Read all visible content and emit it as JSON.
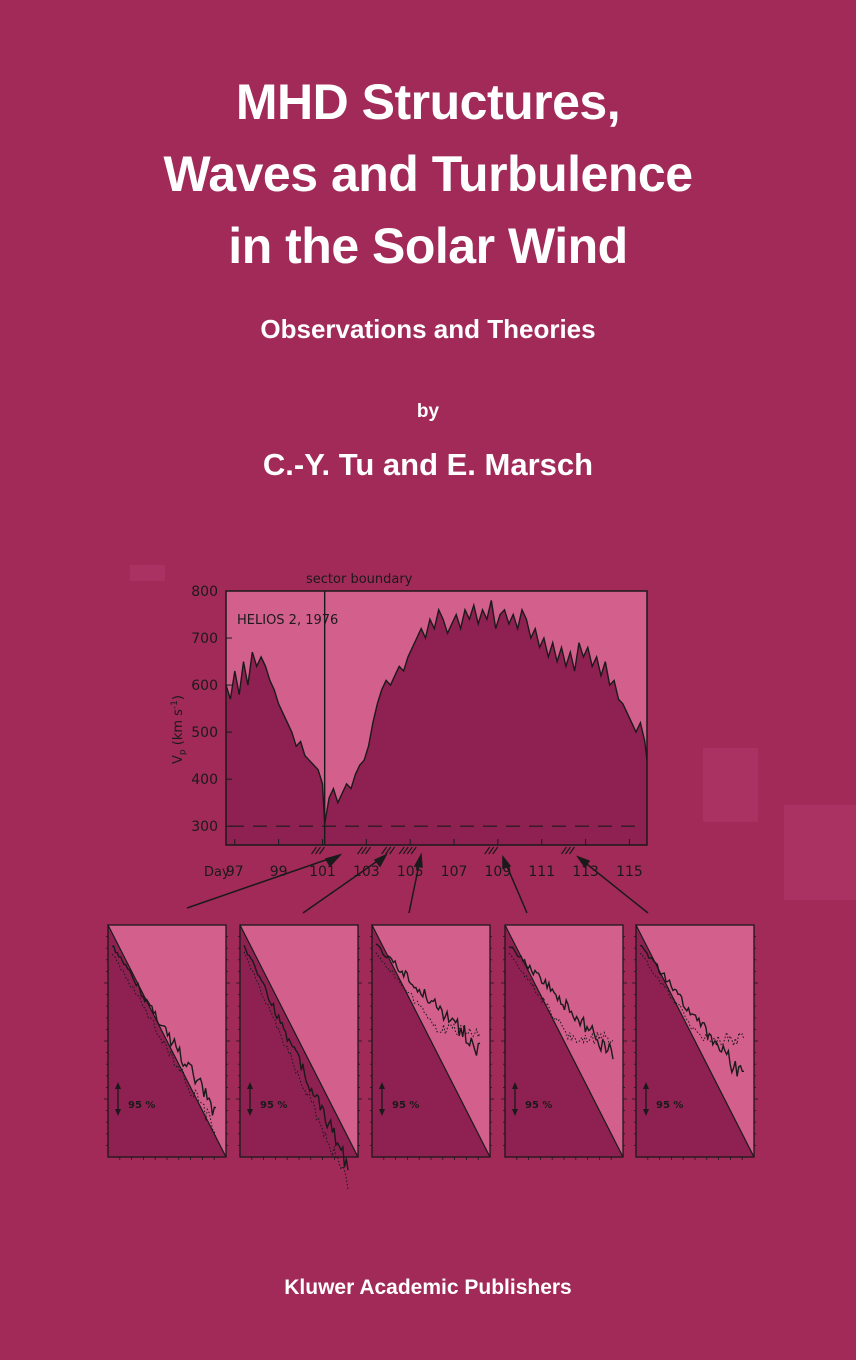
{
  "cover": {
    "title_lines": [
      "MHD Structures,",
      "Waves and Turbulence",
      "in the Solar Wind"
    ],
    "subtitle": "Observations and Theories",
    "by": "by",
    "authors": "C.-Y. Tu and E. Marsch",
    "publisher": "Kluwer Academic Publishers"
  },
  "colors": {
    "background": "#a22a58",
    "plot_light": "#d35f8d",
    "plot_dark": "#8e2151",
    "ink": "#1a1a1a"
  },
  "chart_data": [
    {
      "type": "area",
      "title": "HELIOS 2, 1976",
      "annotation": "sector boundary",
      "xlabel": "Day",
      "ylabel": "Vp (km s-1)",
      "xlim": [
        96.6,
        115.8
      ],
      "ylim": [
        260,
        800
      ],
      "x_ticks": [
        97,
        99,
        101,
        103,
        105,
        107,
        109,
        111,
        113,
        115
      ],
      "y_ticks": [
        300,
        400,
        500,
        600,
        700,
        800
      ],
      "sector_boundary_day": 101.1,
      "reference_level": 300,
      "x": [
        96.6,
        96.8,
        97.0,
        97.2,
        97.4,
        97.6,
        97.8,
        98.0,
        98.2,
        98.4,
        98.6,
        98.8,
        99.0,
        99.2,
        99.4,
        99.6,
        99.8,
        100.0,
        100.2,
        100.4,
        100.6,
        100.8,
        101.0,
        101.1,
        101.3,
        101.5,
        101.7,
        101.9,
        102.1,
        102.3,
        102.5,
        102.7,
        102.9,
        103.1,
        103.3,
        103.5,
        103.7,
        103.9,
        104.1,
        104.3,
        104.5,
        104.7,
        104.9,
        105.1,
        105.3,
        105.5,
        105.7,
        105.9,
        106.1,
        106.3,
        106.5,
        106.7,
        106.9,
        107.1,
        107.3,
        107.5,
        107.7,
        107.9,
        108.1,
        108.3,
        108.5,
        108.7,
        108.9,
        109.1,
        109.3,
        109.5,
        109.7,
        109.9,
        110.1,
        110.3,
        110.5,
        110.7,
        110.9,
        111.1,
        111.3,
        111.5,
        111.7,
        111.9,
        112.1,
        112.3,
        112.5,
        112.7,
        112.9,
        113.1,
        113.3,
        113.5,
        113.7,
        113.9,
        114.1,
        114.3,
        114.5,
        114.7,
        114.9,
        115.1,
        115.3,
        115.5,
        115.7,
        115.8
      ],
      "values": [
        600,
        570,
        630,
        580,
        650,
        600,
        670,
        640,
        660,
        640,
        610,
        590,
        560,
        540,
        520,
        500,
        470,
        480,
        450,
        440,
        430,
        420,
        390,
        305,
        360,
        380,
        350,
        370,
        390,
        380,
        410,
        430,
        440,
        470,
        520,
        560,
        590,
        610,
        600,
        620,
        640,
        630,
        660,
        680,
        700,
        720,
        700,
        740,
        720,
        760,
        740,
        710,
        730,
        750,
        720,
        760,
        740,
        770,
        730,
        760,
        740,
        780,
        720,
        750,
        760,
        730,
        750,
        720,
        760,
        740,
        700,
        720,
        680,
        700,
        660,
        690,
        650,
        680,
        640,
        670,
        630,
        690,
        660,
        680,
        640,
        660,
        620,
        650,
        600,
        610,
        570,
        560,
        540,
        520,
        500,
        520,
        480,
        440
      ],
      "hatched_intervals": [
        [
          100.5,
          101.0
        ],
        [
          102.6,
          103.1
        ],
        [
          103.7,
          104.1
        ],
        [
          104.5,
          105.1
        ],
        [
          108.4,
          108.8
        ],
        [
          111.9,
          112.3
        ]
      ]
    },
    {
      "type": "line",
      "panels": 5,
      "annotation": "95 %",
      "note": "five small spectra panels below the speed plot"
    }
  ]
}
